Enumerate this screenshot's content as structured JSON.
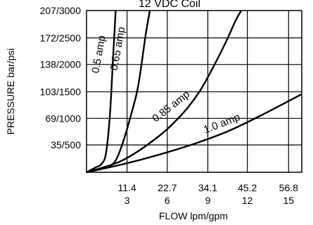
{
  "chart_data": {
    "type": "line",
    "title": "12 VDC Coil",
    "xlabel": "FLOW lpm/gpm",
    "ylabel": "PRESSURE bar/psi",
    "xlim": [
      0,
      60.5
    ],
    "ylim": [
      0,
      207
    ],
    "grid": true,
    "x_ticks": [
      {
        "value": 11.4,
        "label_top": "11.4",
        "label_bottom": "3"
      },
      {
        "value": 22.7,
        "label_top": "22.7",
        "label_bottom": "6"
      },
      {
        "value": 34.1,
        "label_top": "34.1",
        "label_bottom": "9"
      },
      {
        "value": 45.2,
        "label_top": "45.2",
        "label_bottom": "12"
      },
      {
        "value": 56.8,
        "label_top": "56.8",
        "label_bottom": "15"
      }
    ],
    "y_ticks": [
      {
        "value": 35,
        "label": "35/500"
      },
      {
        "value": 69,
        "label": "69/1000"
      },
      {
        "value": 103,
        "label": "103/1500"
      },
      {
        "value": 138,
        "label": "138/2000"
      },
      {
        "value": 172,
        "label": "172/2500"
      },
      {
        "value": 207,
        "label": "207/3000"
      }
    ],
    "series": [
      {
        "name": "0.5 amp",
        "x": [
          0,
          2.5,
          4.3,
          5.5,
          6.6,
          7.5,
          8.2
        ],
        "y": [
          0,
          6,
          11,
          25,
          75,
          150,
          207
        ]
      },
      {
        "name": "0.65 amp",
        "x": [
          0,
          4.5,
          7.7,
          10,
          12.3,
          14.5,
          16.6,
          17.8
        ],
        "y": [
          0,
          6,
          12,
          35,
          70,
          110,
          175,
          207
        ]
      },
      {
        "name": "0.85 amp",
        "x": [
          0,
          10,
          20,
          27,
          32,
          36,
          39,
          42,
          43.5
        ],
        "y": [
          0,
          15,
          45,
          75,
          105,
          138,
          165,
          195,
          207
        ]
      },
      {
        "name": "1.0 amp",
        "x": [
          0,
          10,
          20,
          30,
          40,
          50,
          60.5
        ],
        "y": [
          0,
          10,
          22,
          36,
          53,
          75,
          100
        ]
      }
    ]
  }
}
